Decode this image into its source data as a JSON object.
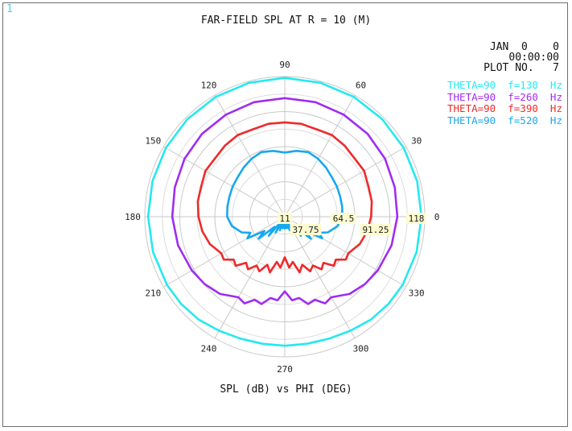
{
  "window_number": "1",
  "header": {
    "title": "FAR-FIELD SPL AT R = 10  (M)",
    "date": "JAN  0    0",
    "time": "00:00:00",
    "plot_no": "PLOT NO.   7"
  },
  "chart_data": {
    "type": "polar-line",
    "title": "FAR-FIELD SPL AT R = 10  (M)",
    "xlabel": "SPL (dB) vs PHI (DEG)",
    "angle_ticks": [
      0,
      30,
      60,
      90,
      120,
      150,
      180,
      210,
      240,
      270,
      300,
      330
    ],
    "radial_ticks": [
      11,
      37.75,
      64.5,
      91.25,
      118
    ],
    "rlim": [
      11,
      118
    ],
    "grid": true,
    "legend_position": "top-right",
    "series": [
      {
        "name": "THETA=90  f=130  Hz",
        "color": "#25e8f0",
        "phi_deg": [
          0,
          15,
          30,
          45,
          60,
          75,
          90,
          105,
          120,
          135,
          150,
          165,
          180,
          195,
          210,
          220,
          230,
          240,
          250,
          260,
          270,
          280,
          290,
          300,
          310,
          320,
          330,
          345,
          360
        ],
        "spl_db": [
          115.5,
          115.7,
          116.0,
          116.3,
          116.6,
          116.8,
          117.0,
          116.8,
          116.6,
          116.3,
          116.0,
          115.7,
          115.5,
          115.3,
          115.0,
          114.5,
          113.5,
          111.5,
          110.0,
          109.5,
          109.5,
          109.5,
          110.0,
          111.5,
          113.5,
          114.5,
          115.0,
          115.3,
          115.5
        ]
      },
      {
        "name": "THETA=90  f=260  Hz",
        "color": "#a02cf0",
        "phi_deg": [
          0,
          15,
          30,
          45,
          60,
          75,
          90,
          105,
          120,
          135,
          150,
          165,
          180,
          195,
          210,
          220,
          230,
          240,
          245,
          250,
          255,
          260,
          265,
          270,
          275,
          280,
          285,
          290,
          295,
          300,
          310,
          320,
          330,
          345,
          360
        ],
        "spl_db": [
          97,
          98,
          99.5,
          100.5,
          101,
          101.5,
          101.5,
          101.5,
          101,
          100.5,
          99.5,
          98,
          97,
          95.5,
          93,
          91,
          88,
          82,
          84,
          78.5,
          80,
          74,
          75,
          68,
          75,
          74,
          80,
          78.5,
          84,
          82,
          88,
          91,
          93,
          95.5,
          97
        ]
      },
      {
        "name": "THETA=90  f=390  Hz",
        "color": "#ee2a2a",
        "phi_deg": [
          0,
          10,
          20,
          30,
          40,
          50,
          60,
          70,
          80,
          90,
          100,
          110,
          120,
          130,
          140,
          150,
          160,
          170,
          180,
          190,
          200,
          210,
          215,
          220,
          225,
          230,
          235,
          240,
          245,
          250,
          255,
          260,
          265,
          270,
          275,
          280,
          285,
          290,
          295,
          300,
          305,
          310,
          315,
          320,
          325,
          330,
          340,
          350,
          360
        ],
        "spl_db": [
          77,
          78.5,
          79,
          81,
          80.5,
          82,
          83,
          82,
          83,
          83,
          83,
          82,
          83,
          82,
          80.5,
          81,
          79,
          78.5,
          77,
          75,
          72,
          67,
          68,
          62,
          64,
          57,
          60,
          54,
          57,
          50,
          55,
          46,
          50,
          42,
          50,
          46,
          55,
          50,
          57,
          54,
          60,
          57,
          64,
          62,
          68,
          67,
          72,
          75,
          77
        ]
      },
      {
        "name": "THETA=90  f=520  Hz",
        "color": "#17a8f0",
        "phi_deg": [
          0,
          10,
          20,
          30,
          40,
          50,
          60,
          70,
          80,
          90,
          100,
          110,
          120,
          130,
          140,
          150,
          160,
          170,
          180,
          190,
          200,
          205,
          210,
          215,
          220,
          225,
          230,
          235,
          240,
          245,
          250,
          255,
          260,
          265,
          270,
          275,
          280,
          285,
          290,
          295,
          300,
          305,
          310,
          315,
          320,
          325,
          330,
          335,
          340,
          350,
          360
        ],
        "spl_db": [
          55,
          55.5,
          56,
          57,
          58,
          60,
          62,
          63.5,
          62,
          60,
          62,
          63.5,
          62,
          60,
          58,
          57,
          56,
          55.5,
          55,
          52,
          46,
          40,
          44,
          30,
          37,
          22,
          30,
          14,
          25,
          12,
          22,
          12,
          20,
          13,
          20,
          13,
          20,
          12,
          22,
          12,
          25,
          14,
          30,
          22,
          37,
          30,
          44,
          40,
          46,
          52,
          55
        ]
      }
    ]
  }
}
